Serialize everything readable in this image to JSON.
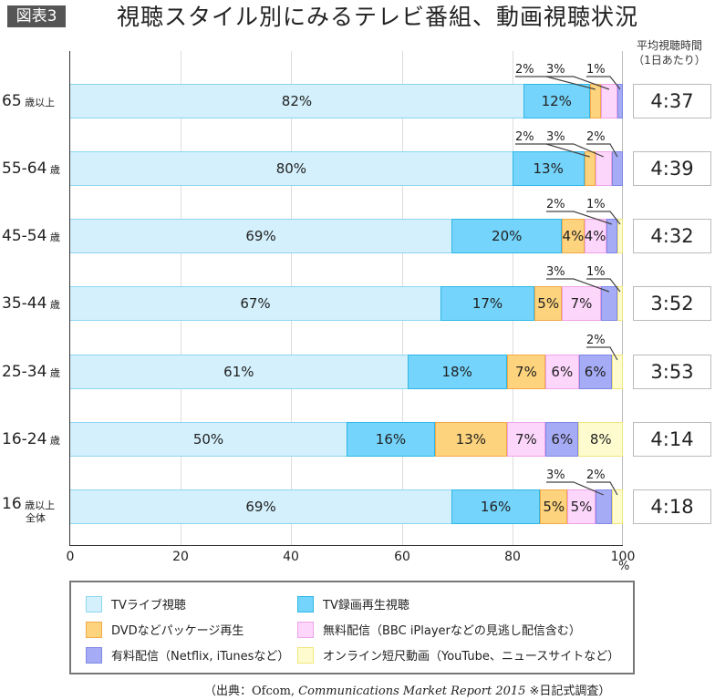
{
  "header": {
    "figure_label": "図表3",
    "title": "視聴スタイル別にみるテレビ番組、動画視聴状況",
    "avg_column_title": "平均視聴時間",
    "avg_column_subtitle": "（1日あたり）"
  },
  "colors": {
    "tv_live": "#d3f0fc",
    "tv_recorded": "#74d4fb",
    "dvd_package": "#fdd37d",
    "free_streaming": "#fdd6fb",
    "paid_streaming": "#a6abf5",
    "online_short_video": "#fefccf"
  },
  "axis": {
    "ticks": [
      "0",
      "20",
      "40",
      "60",
      "80",
      "100"
    ],
    "unit": "%"
  },
  "rows": [
    {
      "label_main": "65",
      "label_sub": "歳以上",
      "label_sub2": "",
      "time": "4:37"
    },
    {
      "label_main": "55-64",
      "label_sub": "歳",
      "label_sub2": "",
      "time": "4:39"
    },
    {
      "label_main": "45-54",
      "label_sub": "歳",
      "label_sub2": "",
      "time": "4:32"
    },
    {
      "label_main": "35-44",
      "label_sub": "歳",
      "label_sub2": "",
      "time": "3:52"
    },
    {
      "label_main": "25-34",
      "label_sub": "歳",
      "label_sub2": "",
      "time": "3:53"
    },
    {
      "label_main": "16-24",
      "label_sub": "歳",
      "label_sub2": "",
      "time": "4:14"
    },
    {
      "label_main": "16",
      "label_sub": "歳以上",
      "label_sub2": "全体",
      "time": "4:18"
    }
  ],
  "legend": [
    {
      "key": "tv_live",
      "label": "TVライブ視聴"
    },
    {
      "key": "tv_recorded",
      "label": "TV録画再生視聴"
    },
    {
      "key": "dvd_package",
      "label": "DVDなどパッケージ再生"
    },
    {
      "key": "free_streaming",
      "label": "無料配信（BBC iPlayerなどの見逃し配信含む）"
    },
    {
      "key": "paid_streaming",
      "label": "有料配信（Netflix, iTunesなど）"
    },
    {
      "key": "online_short_video",
      "label": "オンライン短尺動画（YouTube、ニュースサイトなど）"
    }
  ],
  "source": {
    "prefix": "（出典：Ofcom, ",
    "report": "Communications Market Report 2015",
    "suffix": " ※日記式調査）"
  },
  "chart_data": {
    "type": "bar",
    "orientation": "horizontal",
    "stacked": true,
    "title": "視聴スタイル別にみるテレビ番組、動画視聴状況",
    "xlabel": "%",
    "ylabel": "",
    "xlim": [
      0,
      100
    ],
    "grid": true,
    "categories": [
      "65歳以上",
      "55-64歳",
      "45-54歳",
      "35-44歳",
      "25-34歳",
      "16-24歳",
      "16歳以上全体"
    ],
    "series": [
      {
        "name": "TVライブ視聴",
        "values": [
          82,
          80,
          69,
          67,
          61,
          50,
          69
        ]
      },
      {
        "name": "TV録画再生視聴",
        "values": [
          12,
          13,
          20,
          17,
          18,
          16,
          16
        ]
      },
      {
        "name": "DVDなどパッケージ再生",
        "values": [
          2,
          2,
          4,
          5,
          7,
          13,
          5
        ]
      },
      {
        "name": "無料配信（BBC iPlayerなどの見逃し配信含む）",
        "values": [
          3,
          3,
          4,
          7,
          6,
          7,
          5
        ]
      },
      {
        "name": "有料配信（Netflix, iTunesなど）",
        "values": [
          1,
          2,
          2,
          3,
          6,
          6,
          3
        ]
      },
      {
        "name": "オンライン短尺動画（YouTube、ニュースサイトなど）",
        "values": [
          0,
          0,
          1,
          1,
          2,
          8,
          2
        ]
      }
    ],
    "avg_viewing_time_per_day": [
      "4:37",
      "4:39",
      "4:32",
      "3:52",
      "3:53",
      "4:14",
      "4:18"
    ],
    "legend_position": "bottom"
  }
}
